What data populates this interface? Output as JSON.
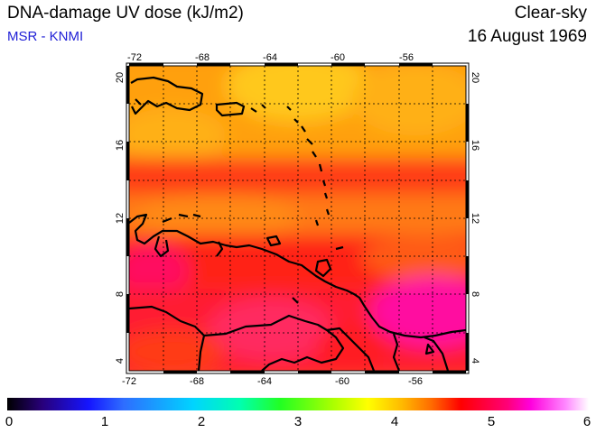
{
  "header": {
    "title": "DNA-damage UV dose (kJ/m2)",
    "subtitle": "MSR - KNMI",
    "condition": "Clear-sky",
    "date": "16 August 1969"
  },
  "map": {
    "lon_range": [
      -72,
      -52
    ],
    "lat_range": [
      4,
      20
    ],
    "lon_ticks": [
      "-72",
      "-68",
      "-64",
      "-60",
      "-56"
    ],
    "lat_ticks": [
      "4",
      "8",
      "12",
      "16",
      "20"
    ],
    "field_colors": {
      "orange": "#ff9a10",
      "yellow_orange": "#ffbe18",
      "red": "#ff1a14",
      "magenta": "#ff10a0"
    }
  },
  "colorbar": {
    "labels": [
      "0",
      "1",
      "2",
      "3",
      "4",
      "5",
      "6"
    ]
  }
}
